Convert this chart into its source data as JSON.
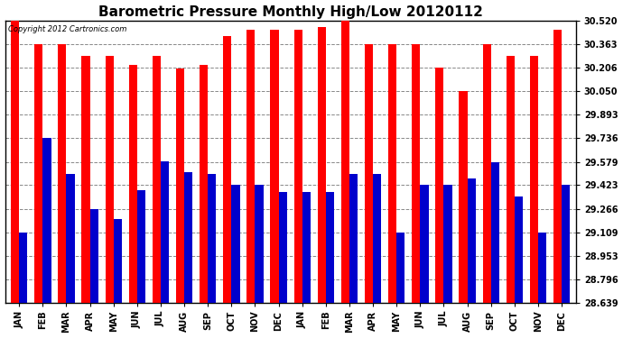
{
  "title": "Barometric Pressure Monthly High/Low 20120112",
  "copyright_text": "Copyright 2012 Cartronics.com",
  "months": [
    "JAN",
    "FEB",
    "MAR",
    "APR",
    "MAY",
    "JUN",
    "JUL",
    "AUG",
    "SEP",
    "OCT",
    "NOV",
    "DEC",
    "JAN",
    "FEB",
    "MAR",
    "APR",
    "MAY",
    "JUN",
    "JUL",
    "AUG",
    "SEP",
    "OCT",
    "NOV",
    "DEC"
  ],
  "highs": [
    30.52,
    30.363,
    30.363,
    30.284,
    30.284,
    30.225,
    30.284,
    30.2,
    30.225,
    30.42,
    30.46,
    30.46,
    30.46,
    30.48,
    30.54,
    30.363,
    30.363,
    30.363,
    30.206,
    30.05,
    30.363,
    30.284,
    30.284,
    30.46
  ],
  "lows": [
    29.109,
    29.736,
    29.5,
    29.266,
    29.2,
    29.39,
    29.58,
    29.51,
    29.5,
    29.423,
    29.423,
    29.38,
    29.38,
    29.38,
    29.5,
    29.5,
    29.109,
    29.423,
    29.423,
    29.466,
    29.579,
    29.35,
    29.109,
    29.423
  ],
  "bar_high_color": "#ff0000",
  "bar_low_color": "#0000cc",
  "background_color": "#ffffff",
  "plot_bg_color": "#ffffff",
  "grid_color": "#888888",
  "yticks": [
    28.639,
    28.796,
    28.953,
    29.109,
    29.266,
    29.423,
    29.579,
    29.736,
    29.893,
    30.05,
    30.206,
    30.363,
    30.52
  ],
  "ymin": 28.639,
  "ymax": 30.52,
  "title_fontsize": 11,
  "tick_fontsize": 7,
  "bar_width": 0.35,
  "figsize": [
    6.9,
    3.75
  ],
  "dpi": 100
}
